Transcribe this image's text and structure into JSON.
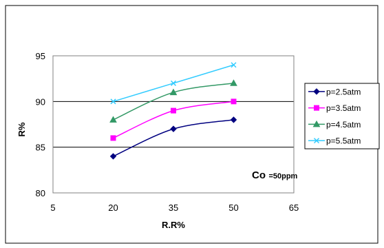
{
  "chart_data": {
    "type": "line",
    "xlabel": "R.R%",
    "ylabel": "R%",
    "xlim": [
      5,
      65
    ],
    "ylim": [
      80,
      95
    ],
    "xticks": [
      "5",
      "20",
      "35",
      "50",
      "65"
    ],
    "yticks": [
      "80",
      "85",
      "90",
      "95"
    ],
    "x": [
      20,
      35,
      50
    ],
    "grid": "horizontal",
    "legend_position": "right",
    "annotation": {
      "main": "Co",
      "sub": "=50ppm"
    },
    "series": [
      {
        "name": "p=2.5atm",
        "values": [
          84,
          87,
          88
        ],
        "color": "#000080",
        "marker": "diamond"
      },
      {
        "name": "p=3.5atm",
        "values": [
          86,
          89,
          90
        ],
        "color": "#ff00ff",
        "marker": "square"
      },
      {
        "name": "p=4.5atm",
        "values": [
          88,
          91,
          92
        ],
        "color": "#339966",
        "marker": "triangle"
      },
      {
        "name": "p=5.5atm",
        "values": [
          90,
          92,
          94
        ],
        "color": "#33ccff",
        "marker": "x"
      }
    ]
  }
}
